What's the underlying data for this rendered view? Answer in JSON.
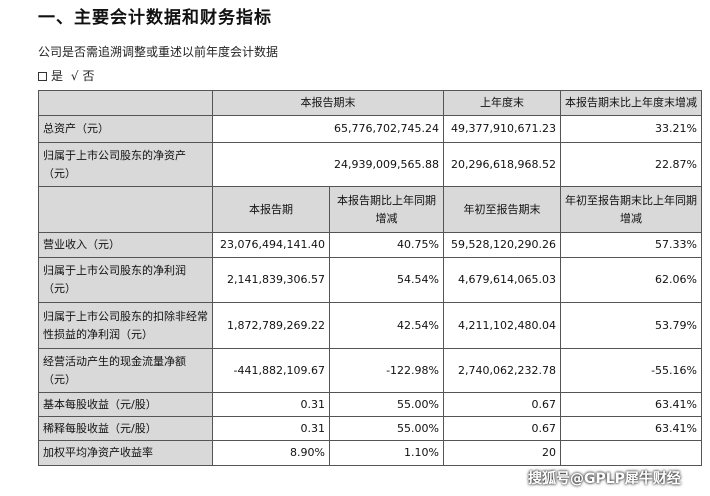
{
  "title": "一、主要会计数据和财务指标",
  "subtitle": "公司是否需追溯调整或重述以前年度会计数据",
  "choice": {
    "yes_mark": "",
    "yes_label": "是",
    "no_mark": "√",
    "no_label": "否"
  },
  "table1": {
    "headers": [
      "本报告期末",
      "上年度末",
      "本报告期末比上年度末增减"
    ],
    "rows": [
      {
        "label": "总资产（元）",
        "values": [
          "65,776,702,745.24",
          "49,377,910,671.23",
          "33.21%"
        ]
      },
      {
        "label": "归属于上市公司股东的净资产（元）",
        "values": [
          "24,939,009,565.88",
          "20,296,618,968.52",
          "22.87%"
        ]
      }
    ]
  },
  "table2": {
    "headers": [
      "本报告期",
      "本报告期比上年同期增减",
      "年初至报告期末",
      "年初至报告期末比上年同期增减"
    ],
    "rows": [
      {
        "label": "营业收入（元）",
        "values": [
          "23,076,494,141.40",
          "40.75%",
          "59,528,120,290.26",
          "57.33%"
        ]
      },
      {
        "label": "归属于上市公司股东的净利润（元）",
        "values": [
          "2,141,839,306.57",
          "54.54%",
          "4,679,614,065.03",
          "62.06%"
        ]
      },
      {
        "label": "归属于上市公司股东的扣除非经常性损益的净利润（元）",
        "values": [
          "1,872,789,269.22",
          "42.54%",
          "4,211,102,480.04",
          "53.79%"
        ]
      },
      {
        "label": "经营活动产生的现金流量净额（元）",
        "values": [
          "-441,882,109.67",
          "-122.98%",
          "2,740,062,232.78",
          "-55.16%"
        ]
      },
      {
        "label": "基本每股收益（元/股）",
        "values": [
          "0.31",
          "55.00%",
          "0.67",
          "63.41%"
        ]
      },
      {
        "label": "稀释每股收益（元/股）",
        "values": [
          "0.31",
          "55.00%",
          "0.67",
          "63.41%"
        ]
      },
      {
        "label": "加权平均净资产收益率",
        "values": [
          "8.90%",
          "1.10%",
          "20",
          ""
        ]
      }
    ]
  },
  "watermark": "搜狐号@GPLP犀牛财经"
}
